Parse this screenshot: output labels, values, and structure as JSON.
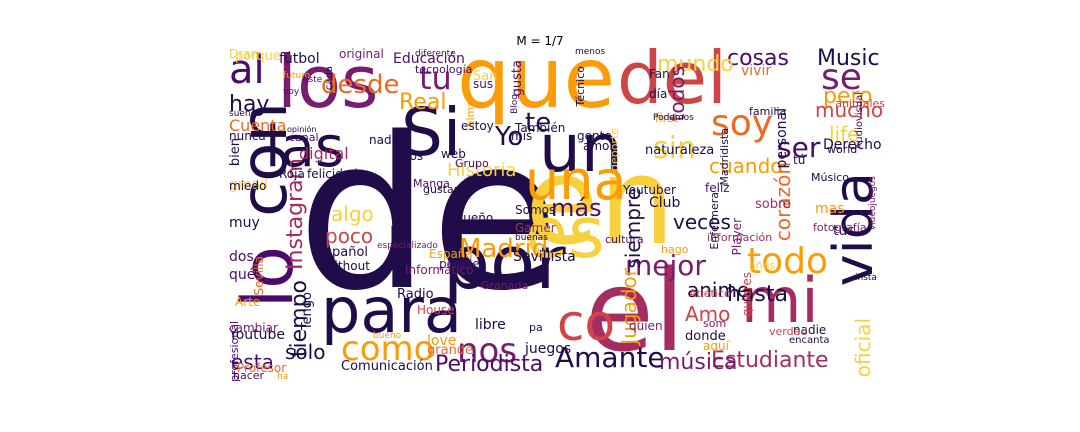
{
  "title": "M = 1/7",
  "colors": {
    "c0": "#1f0c48",
    "c1": "#4a0c6b",
    "c2": "#781c6d",
    "c3": "#a52c60",
    "c4": "#cf4446",
    "c5": "#ed6925",
    "c6": "#fb9b06",
    "c7": "#f7d13d",
    "c8": "#fcffa4"
  },
  "words": [
    {
      "text": "de",
      "color": "#1f0c48"
    },
    {
      "text": "en",
      "color": "#f7d13d"
    },
    {
      "text": "que",
      "color": "#fb9b06"
    },
    {
      "text": "el",
      "color": "#a52c60"
    },
    {
      "text": "los",
      "color": "#781c6d"
    },
    {
      "text": "del",
      "color": "#cf4446"
    },
    {
      "text": "por",
      "color": "#1f0c48"
    },
    {
      "text": "Si",
      "color": "#1f0c48"
    },
    {
      "text": "un",
      "color": "#1f0c48"
    },
    {
      "text": "es",
      "color": "#f7d13d"
    },
    {
      "text": "con",
      "color": "#1f0c48"
    },
    {
      "text": "lo",
      "color": "#4a0c6b"
    },
    {
      "text": "para",
      "color": "#1f0c48"
    },
    {
      "text": "una",
      "color": "#fb9b06"
    },
    {
      "text": "las",
      "color": "#1f0c48"
    },
    {
      "text": "mi",
      "color": "#a52c60"
    },
    {
      "text": "vida",
      "color": "#1f0c48"
    },
    {
      "text": "co",
      "color": "#cf4446"
    },
    {
      "text": "al",
      "color": "#4a0c6b"
    },
    {
      "text": "soy",
      "color": "#ed6925"
    },
    {
      "text": "todo",
      "color": "#fb9b06"
    },
    {
      "text": "se",
      "color": "#781c6d"
    },
    {
      "text": "como",
      "color": "#fb9b06"
    },
    {
      "text": "nos",
      "color": "#781c6d"
    },
    {
      "text": "tu",
      "color": "#781c6d"
    },
    {
      "text": "Amante",
      "color": "#1f0c48"
    },
    {
      "text": "sin",
      "color": "#f7d13d"
    },
    {
      "text": "ser",
      "color": "#4a0c6b"
    },
    {
      "text": "Madrid",
      "color": "#fb9b06"
    },
    {
      "text": "mejor",
      "color": "#781c6d"
    },
    {
      "text": "te",
      "color": "#1f0c48"
    },
    {
      "text": "Yo",
      "color": "#1f0c48"
    },
    {
      "text": "desde",
      "color": "#ed6925"
    },
    {
      "text": "Estudiante",
      "color": "#a52c60"
    },
    {
      "text": "música",
      "color": "#781c6d"
    },
    {
      "text": "Periodista",
      "color": "#4a0c6b"
    },
    {
      "text": "hay",
      "color": "#1f0c48"
    },
    {
      "text": "pero",
      "color": "#fb9b06"
    },
    {
      "text": "Music",
      "color": "#1f0c48"
    },
    {
      "text": "cosas",
      "color": "#4a0c6b"
    },
    {
      "text": "mundo",
      "color": "#f7d13d"
    },
    {
      "text": "todos",
      "color": "#781c6d"
    },
    {
      "text": "más",
      "color": "#4a0c6b"
    },
    {
      "text": "Real",
      "color": "#fb9b06"
    },
    {
      "text": "Twitter",
      "color": "#1f0c48"
    },
    {
      "text": "Instagram",
      "color": "#a52c60"
    },
    {
      "text": "tiempo",
      "color": "#1f0c48"
    },
    {
      "text": "siempre",
      "color": "#1f0c48"
    },
    {
      "text": "veces",
      "color": "#1f0c48"
    },
    {
      "text": "hasta",
      "color": "#1f0c48"
    },
    {
      "text": "poco",
      "color": "#cf4446"
    },
    {
      "text": "algo",
      "color": "#f7d13d"
    },
    {
      "text": "cuando",
      "color": "#fb9b06"
    },
    {
      "text": "corazón",
      "color": "#ed6925"
    },
    {
      "text": "mucho",
      "color": "#cf4446"
    },
    {
      "text": "life",
      "color": "#f7d13d"
    },
    {
      "text": "solo",
      "color": "#1f0c48"
    },
    {
      "text": "esta",
      "color": "#4a0c6b"
    },
    {
      "text": "Jugador",
      "color": "#fb9b06"
    },
    {
      "text": "oficial",
      "color": "#f7d13d"
    },
    {
      "text": "Amo",
      "color": "#cf4446"
    },
    {
      "text": "anime",
      "color": "#1f0c48"
    },
    {
      "text": "Historia",
      "color": "#f7d13d"
    },
    {
      "text": "digital",
      "color": "#a52c60"
    },
    {
      "text": "Cuenta",
      "color": "#ed6925"
    },
    {
      "text": "personal",
      "color": "#1f0c48"
    },
    {
      "text": "Derecho",
      "color": "#1f0c48"
    },
    {
      "text": "Youtube",
      "color": "#1f0c48"
    },
    {
      "text": "Club",
      "color": "#1f0c48"
    },
    {
      "text": "Sevillista",
      "color": "#1f0c48"
    },
    {
      "text": "Español",
      "color": "#1f0c48"
    },
    {
      "text": "Comunicación",
      "color": "#1f0c48"
    },
    {
      "text": "Profesor",
      "color": "#ed6925"
    },
    {
      "text": "Fan",
      "color": "#1f0c48"
    },
    {
      "text": "Educación",
      "color": "#4a0c6b"
    },
    {
      "text": "fútbol",
      "color": "#1f0c48"
    },
    {
      "text": "porque",
      "color": "#f7d13d"
    },
    {
      "text": "vivir",
      "color": "#ed6925"
    },
    {
      "text": "gmail",
      "color": "#f7d13d"
    },
    {
      "text": "nunca",
      "color": "#1f0c48"
    },
    {
      "text": "bien",
      "color": "#1f0c48"
    },
    {
      "text": "miedo",
      "color": "#1f0c48"
    },
    {
      "text": "muy",
      "color": "#1f0c48"
    },
    {
      "text": "dos",
      "color": "#4a0c6b"
    },
    {
      "text": "qué",
      "color": "#4a0c6b"
    },
    {
      "text": "profesional",
      "color": "#4a0c6b"
    },
    {
      "text": "cambiar",
      "color": "#781c6d"
    },
    {
      "text": "hacer",
      "color": "#4a0c6b"
    },
    {
      "text": "Sevilla",
      "color": "#ed6925"
    },
    {
      "text": "Arte",
      "color": "#fb9b06"
    },
    {
      "text": "Tengo",
      "color": "#1f0c48"
    },
    {
      "text": "Radio",
      "color": "#1f0c48"
    },
    {
      "text": "Without",
      "color": "#1f0c48"
    },
    {
      "text": "Informático",
      "color": "#781c6d"
    },
    {
      "text": "Granada",
      "color": "#781c6d"
    },
    {
      "text": "libre",
      "color": "#1f0c48"
    },
    {
      "text": "love",
      "color": "#fb9b06"
    },
    {
      "text": "grande",
      "color": "#ed6925"
    },
    {
      "text": "juegos",
      "color": "#1f0c48"
    },
    {
      "text": "quien",
      "color": "#781c6d"
    },
    {
      "text": "donde",
      "color": "#1f0c48"
    },
    {
      "text": "aquí",
      "color": "#fb9b06"
    },
    {
      "text": "nadie",
      "color": "#1f0c48"
    },
    {
      "text": "Atlético",
      "color": "#cf4446"
    },
    {
      "text": "años",
      "color": "#f7d13d"
    },
    {
      "text": "hago",
      "color": "#fb9b06"
    },
    {
      "text": "información",
      "color": "#a52c60"
    },
    {
      "text": "tus",
      "color": "#1f0c48"
    },
    {
      "text": "quieres",
      "color": "#cf4446"
    },
    {
      "text": "fotografía",
      "color": "#781c6d"
    },
    {
      "text": "mas",
      "color": "#fb9b06"
    },
    {
      "text": "Player",
      "color": "#781c6d"
    },
    {
      "text": "Enfermera",
      "color": "#1f0c48"
    },
    {
      "text": "Youtuber",
      "color": "#1f0c48"
    },
    {
      "text": "sobre",
      "color": "#a52c60"
    },
    {
      "text": "feliz",
      "color": "#4a0c6b"
    },
    {
      "text": "tú",
      "color": "#1f0c48"
    },
    {
      "text": "naturaleza",
      "color": "#1f0c48"
    },
    {
      "text": "gente",
      "color": "#1f0c48"
    },
    {
      "text": "amor",
      "color": "#1f0c48"
    },
    {
      "text": "mis",
      "color": "#1f0c48"
    },
    {
      "text": "gusta",
      "color": "#4a0c6b"
    },
    {
      "text": "sus",
      "color": "#4a0c6b"
    },
    {
      "text": "San",
      "color": "#f7d13d"
    },
    {
      "text": "día",
      "color": "#1f0c48"
    },
    {
      "text": "first",
      "color": "#fb9b06"
    },
    {
      "text": "Técnico",
      "color": "#1f0c48"
    },
    {
      "text": "Madridista",
      "color": "#1f0c48"
    },
    {
      "text": "familia",
      "color": "#1f0c48"
    },
    {
      "text": "world",
      "color": "#1f0c48"
    },
    {
      "text": "Músico",
      "color": "#1f0c48"
    },
    {
      "text": "videojuegos",
      "color": "#781c6d"
    },
    {
      "text": "animales",
      "color": "#cf4446"
    },
    {
      "text": "Audiovisual",
      "color": "#4a0c6b"
    },
    {
      "text": "Manga",
      "color": "#4a0c6b"
    },
    {
      "text": "gustan",
      "color": "#1f0c48"
    },
    {
      "text": "Roja",
      "color": "#1f0c48"
    },
    {
      "text": "felicidad",
      "color": "#1f0c48"
    },
    {
      "text": "Dios",
      "color": "#1f0c48"
    },
    {
      "text": "web",
      "color": "#1f0c48"
    },
    {
      "text": "Grupo",
      "color": "#4a0c6b"
    },
    {
      "text": "sueño",
      "color": "#1f0c48"
    },
    {
      "text": "Somos",
      "color": "#1f0c48"
    },
    {
      "text": "Gamer",
      "color": "#a52c60"
    },
    {
      "text": "buenas",
      "color": "#1f0c48"
    },
    {
      "text": "cultura",
      "color": "#4a0c6b"
    },
    {
      "text": "España",
      "color": "#fb9b06"
    },
    {
      "text": "people",
      "color": "#4a0c6b"
    },
    {
      "text": "especializado",
      "color": "#781c6d"
    },
    {
      "text": "canal",
      "color": "#4a0c6b"
    },
    {
      "text": "opinión",
      "color": "#1f0c48"
    },
    {
      "text": "nada",
      "color": "#1f0c48"
    },
    {
      "text": "original",
      "color": "#781c6d"
    },
    {
      "text": "diferente",
      "color": "#4a0c6b"
    },
    {
      "text": "tecnología",
      "color": "#4a0c6b"
    },
    {
      "text": "menos",
      "color": "#1f0c48"
    },
    {
      "text": "futuro",
      "color": "#fb9b06"
    },
    {
      "text": "este",
      "color": "#4a0c6b"
    },
    {
      "text": "voy",
      "color": "#4a0c6b"
    },
    {
      "text": "cada",
      "color": "#1f0c48"
    },
    {
      "text": "suenos",
      "color": "#1f0c48"
    },
    {
      "text": "Blog",
      "color": "#4a0c6b"
    },
    {
      "text": "alma",
      "color": "#fb9b06"
    },
    {
      "text": "estoy",
      "color": "#1f0c48"
    },
    {
      "text": "También",
      "color": "#1f0c48"
    },
    {
      "text": "Podemos",
      "color": "#1f0c48"
    },
    {
      "text": "deporte",
      "color": "#f7d13d"
    },
    {
      "text": "insta",
      "color": "#1f0c48"
    },
    {
      "text": "encanta",
      "color": "#1f0c48"
    },
    {
      "text": "verdad",
      "color": "#cf4446"
    },
    {
      "text": "som",
      "color": "#781c6d"
    },
    {
      "text": "ha",
      "color": "#fb9b06"
    },
    {
      "text": "pa",
      "color": "#1f0c48"
    },
    {
      "text": "bueno",
      "color": "#fb9b06"
    },
    {
      "text": "House",
      "color": "#cf4446"
    },
    {
      "text": "Dran",
      "color": "#f7d13d"
    }
  ]
}
